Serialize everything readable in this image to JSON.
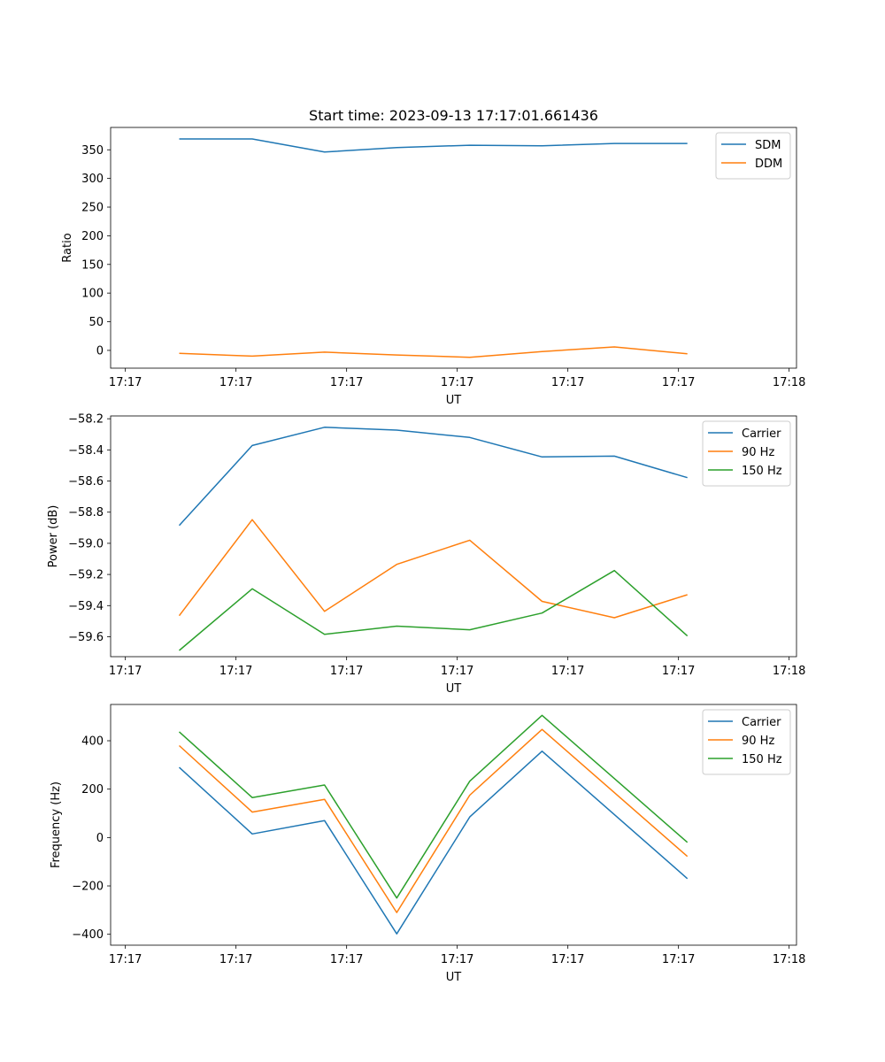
{
  "chart_data": [
    {
      "type": "line",
      "title": "Start time: 2023-09-13 17:17:01.661436",
      "xlabel": "UT",
      "ylabel": "Ratio",
      "xlim": [
        -0.2,
        9.1
      ],
      "ylim": [
        -31,
        389
      ],
      "x_ticks": [
        0,
        1.5,
        3,
        4.5,
        6,
        7.5,
        9
      ],
      "x_tick_labels": [
        "17:17",
        "17:17",
        "17:17",
        "17:17",
        "17:17",
        "17:17",
        "17:18"
      ],
      "y_ticks": [
        0,
        50,
        100,
        150,
        200,
        250,
        300,
        350
      ],
      "y_tick_labels": [
        "0",
        "50",
        "100",
        "150",
        "200",
        "250",
        "300",
        "350"
      ],
      "legend_position": "top-right",
      "x": [
        0.73,
        1.72,
        2.7,
        3.68,
        4.67,
        5.65,
        6.63,
        7.62
      ],
      "series": [
        {
          "name": "SDM",
          "color": "#1f77b4",
          "values": [
            369,
            369,
            346,
            354,
            358,
            357,
            361,
            361
          ]
        },
        {
          "name": "DDM",
          "color": "#ff7f0e",
          "values": [
            -5,
            -10,
            -3,
            -8,
            -12,
            -2,
            6,
            -6
          ]
        }
      ]
    },
    {
      "type": "line",
      "title": "",
      "xlabel": "UT",
      "ylabel": "Power (dB)",
      "xlim": [
        -0.2,
        9.1
      ],
      "ylim": [
        -59.728,
        -58.182
      ],
      "x_ticks": [
        0,
        1.5,
        3,
        4.5,
        6,
        7.5,
        9
      ],
      "x_tick_labels": [
        "17:17",
        "17:17",
        "17:17",
        "17:17",
        "17:17",
        "17:17",
        "17:18"
      ],
      "y_ticks": [
        -59.6,
        -59.4,
        -59.2,
        -59.0,
        -58.8,
        -58.6,
        -58.4,
        -58.2
      ],
      "y_tick_labels": [
        "−59.6",
        "−59.4",
        "−59.2",
        "−59.0",
        "−58.8",
        "−58.6",
        "−58.4",
        "−58.2"
      ],
      "legend_position": "top-right",
      "x": [
        0.73,
        1.72,
        2.7,
        3.68,
        4.67,
        5.65,
        6.63,
        7.62
      ],
      "series": [
        {
          "name": "Carrier",
          "color": "#1f77b4",
          "values": [
            -58.885,
            -58.372,
            -58.255,
            -58.273,
            -58.32,
            -58.445,
            -58.44,
            -58.578
          ]
        },
        {
          "name": "90 Hz",
          "color": "#ff7f0e",
          "values": [
            -59.465,
            -58.848,
            -59.437,
            -59.135,
            -58.98,
            -59.373,
            -59.478,
            -59.33
          ]
        },
        {
          "name": "150 Hz",
          "color": "#2ca02c",
          "values": [
            -59.688,
            -59.292,
            -59.585,
            -59.532,
            -59.555,
            -59.448,
            -59.175,
            -59.595
          ]
        }
      ]
    },
    {
      "type": "line",
      "title": "",
      "xlabel": "UT",
      "ylabel": "Frequency (Hz)",
      "xlim": [
        -0.2,
        9.1
      ],
      "ylim": [
        -445,
        550
      ],
      "x_ticks": [
        0,
        1.5,
        3,
        4.5,
        6,
        7.5,
        9
      ],
      "x_tick_labels": [
        "17:17",
        "17:17",
        "17:17",
        "17:17",
        "17:17",
        "17:17",
        "17:18"
      ],
      "y_ticks": [
        -400,
        -200,
        0,
        200,
        400
      ],
      "y_tick_labels": [
        "−400",
        "−200",
        "0",
        "200",
        "400"
      ],
      "legend_position": "top-right",
      "x": [
        0.73,
        1.72,
        2.7,
        3.68,
        4.67,
        5.65,
        7.62
      ],
      "series": [
        {
          "name": "Carrier",
          "color": "#1f77b4",
          "values": [
            290,
            15,
            70,
            -398,
            85,
            357,
            -170
          ]
        },
        {
          "name": "90 Hz",
          "color": "#ff7f0e",
          "values": [
            380,
            105,
            158,
            -310,
            175,
            447,
            -78
          ]
        },
        {
          "name": "150 Hz",
          "color": "#2ca02c",
          "values": [
            437,
            165,
            217,
            -250,
            233,
            505,
            -20
          ]
        }
      ]
    }
  ]
}
